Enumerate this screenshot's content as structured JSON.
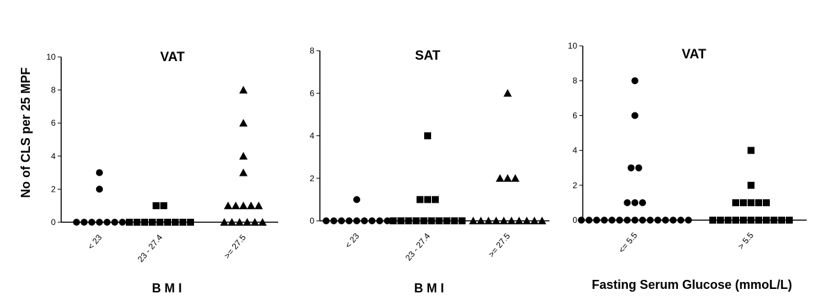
{
  "chart_data": [
    {
      "type": "dot",
      "title": "VAT",
      "y_label": "No of CLS per 25 MPF",
      "x_label": "B M I",
      "categories": [
        "< 23",
        "23 - 27.4",
        ">= 27.5"
      ],
      "markers": [
        "circle",
        "square",
        "triangle"
      ],
      "color": "#000000",
      "values": [
        [
          0,
          0,
          0,
          0,
          0,
          0,
          0,
          2,
          3
        ],
        [
          0,
          0,
          0,
          0,
          0,
          0,
          0,
          0,
          0,
          1,
          1
        ],
        [
          0,
          0,
          0,
          0,
          0,
          0,
          1,
          1,
          1,
          1,
          1,
          3,
          4,
          6,
          8
        ]
      ],
      "ylim": [
        0,
        10
      ],
      "yticks": [
        0,
        2,
        4,
        6,
        8,
        10
      ]
    },
    {
      "type": "dot",
      "title": "SAT",
      "x_label": "B M I",
      "categories": [
        "< 23",
        "23 - 27.4",
        ">= 27.5"
      ],
      "markers": [
        "circle",
        "square",
        "triangle"
      ],
      "color": "#000000",
      "values": [
        [
          0,
          0,
          0,
          0,
          0,
          0,
          0,
          0,
          0,
          1
        ],
        [
          0,
          0,
          0,
          0,
          0,
          0,
          0,
          0,
          0,
          0,
          1,
          1,
          1,
          4
        ],
        [
          0,
          0,
          0,
          0,
          0,
          0,
          0,
          0,
          0,
          0,
          2,
          2,
          2,
          6
        ]
      ],
      "ylim": [
        0,
        8
      ],
      "yticks": [
        0,
        2,
        4,
        6,
        8
      ]
    },
    {
      "type": "dot",
      "title": "VAT",
      "x_label": "Fasting Serum Glucose (mmoL/L)",
      "categories": [
        "<= 5.5",
        "> 5.5"
      ],
      "markers": [
        "circle",
        "square"
      ],
      "color": "#000000",
      "values": [
        [
          0,
          0,
          0,
          0,
          0,
          0,
          0,
          0,
          0,
          0,
          0,
          0,
          0,
          0,
          0,
          1,
          1,
          1,
          3,
          3,
          6,
          8
        ],
        [
          0,
          0,
          0,
          0,
          0,
          0,
          0,
          0,
          0,
          0,
          0,
          1,
          1,
          1,
          1,
          1,
          2,
          4
        ]
      ],
      "ylim": [
        0,
        10
      ],
      "yticks": [
        0,
        2,
        4,
        6,
        8,
        10
      ]
    }
  ]
}
